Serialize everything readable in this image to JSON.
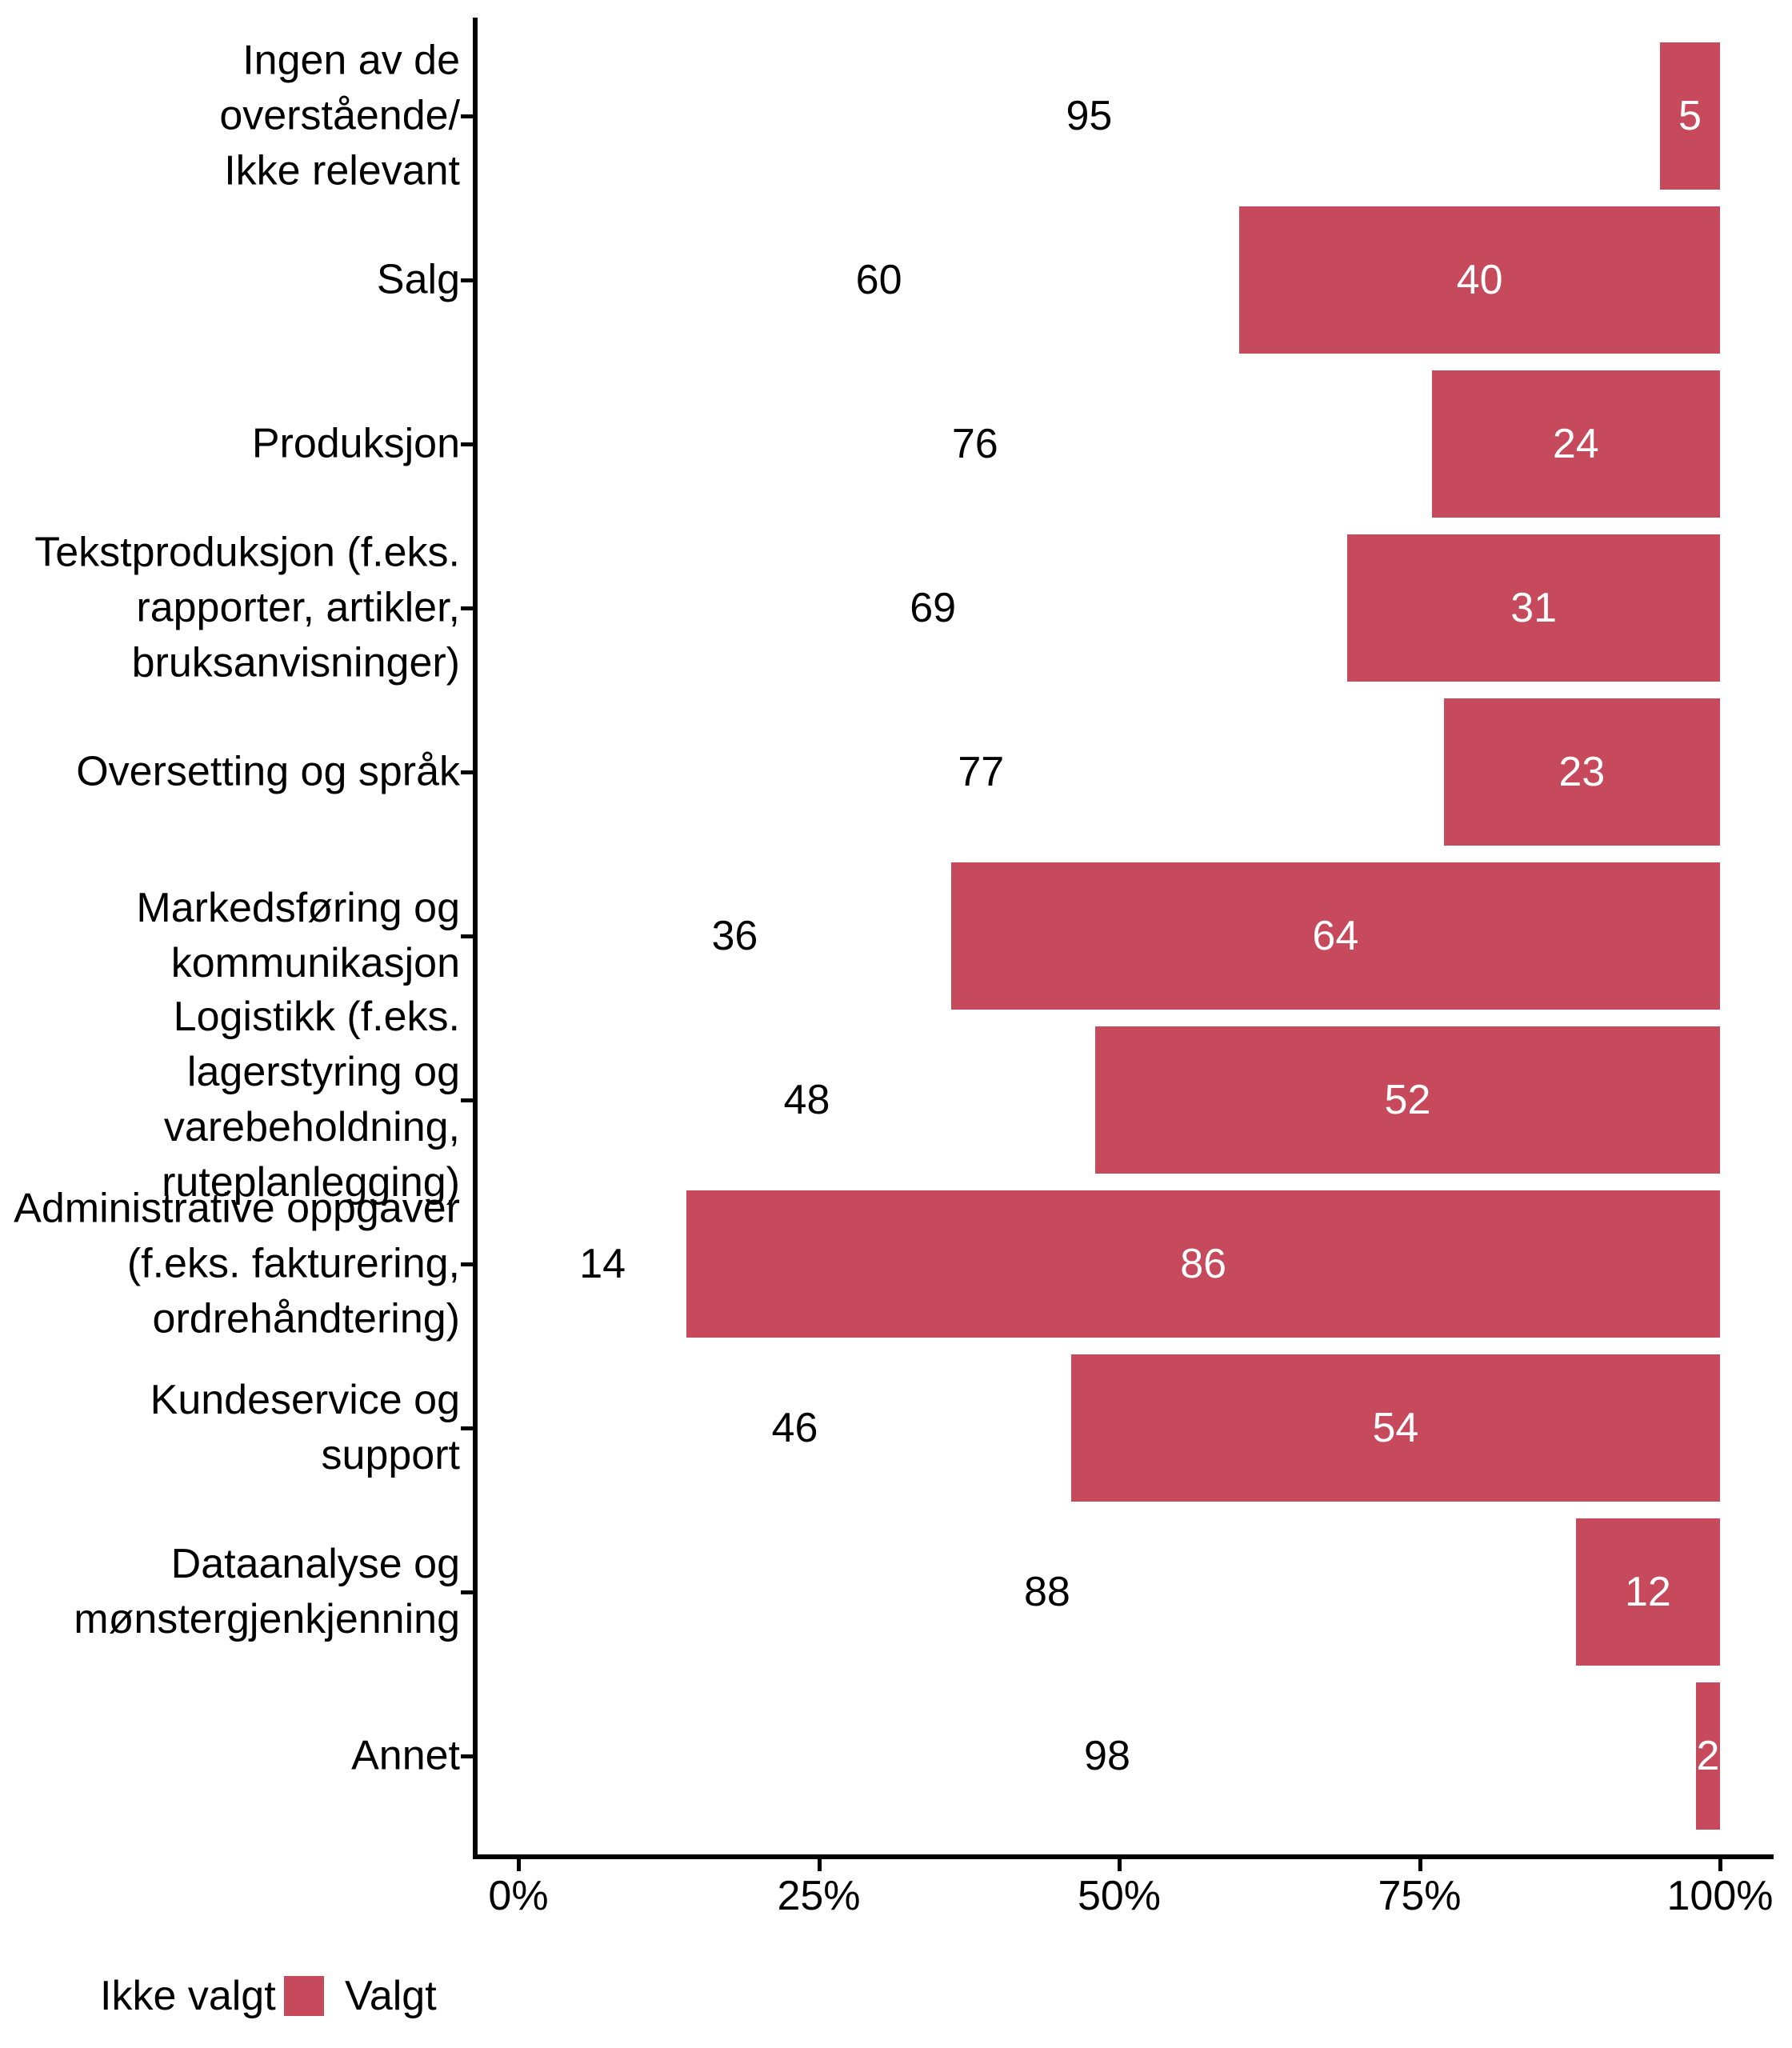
{
  "chart_data": {
    "type": "bar",
    "orientation": "horizontal",
    "stacked": true,
    "unit": "percent",
    "title": "",
    "xlabel": "",
    "ylabel": "",
    "x_axis": {
      "min": 0,
      "max": 100,
      "ticks": [
        "0%",
        "25%",
        "50%",
        "75%",
        "100%"
      ],
      "grid": false
    },
    "legend": {
      "position": "bottom-left",
      "items": [
        {
          "label": "Ikke valgt",
          "color": "#FFFFFF"
        },
        {
          "label": "Valgt",
          "color": "#C64A5C"
        }
      ]
    },
    "series": [
      {
        "name": "Ikke valgt",
        "color": "#FFFFFF",
        "values": [
          95,
          60,
          76,
          69,
          77,
          36,
          48,
          14,
          46,
          88,
          98
        ]
      },
      {
        "name": "Valgt",
        "color": "#C64A5C",
        "values": [
          5,
          40,
          24,
          31,
          23,
          64,
          52,
          86,
          54,
          12,
          2
        ]
      }
    ],
    "categories": [
      "Ingen av de overstående/ Ikke relevant",
      "Salg",
      "Produksjon",
      "Tekstproduksjon (f.eks. rapporter, artikler, bruksanvisninger)",
      "Oversetting og språk",
      "Markedsføring og kommunikasjon",
      "Logistikk (f.eks. lagerstyring og varebeholdning, ruteplanlegging)",
      "Administrative oppgaver (f.eks. fakturering, ordrehåndtering)",
      "Kundeservice og support",
      "Dataanalyse og mønstergjenkjenning",
      "Annet"
    ],
    "rows": [
      {
        "label": "Ingen av de overstående/\nIkke relevant",
        "ikke_valgt": 95,
        "valgt": 5
      },
      {
        "label": "Salg",
        "ikke_valgt": 60,
        "valgt": 40
      },
      {
        "label": "Produksjon",
        "ikke_valgt": 76,
        "valgt": 24
      },
      {
        "label": "Tekstproduksjon (f.eks.\nrapporter, artikler,\nbruksanvisninger)",
        "ikke_valgt": 69,
        "valgt": 31
      },
      {
        "label": "Oversetting og språk",
        "ikke_valgt": 77,
        "valgt": 23
      },
      {
        "label": "Markedsføring og\nkommunikasjon",
        "ikke_valgt": 36,
        "valgt": 64
      },
      {
        "label": "Logistikk (f.eks.\nlagerstyring og\nvarebeholdning,\nruteplanlegging)",
        "ikke_valgt": 48,
        "valgt": 52
      },
      {
        "label": "Administrative oppgaver\n(f.eks. fakturering,\nordrehåndtering)",
        "ikke_valgt": 14,
        "valgt": 86
      },
      {
        "label": "Kundeservice og support",
        "ikke_valgt": 46,
        "valgt": 54
      },
      {
        "label": "Dataanalyse og\nmønstergjenkjenning",
        "ikke_valgt": 88,
        "valgt": 12
      },
      {
        "label": "Annet",
        "ikke_valgt": 98,
        "valgt": 2
      }
    ]
  },
  "colors": {
    "bar_fill": "#C64A5C",
    "axis": "#000000",
    "text": "#000000",
    "background": "#FFFFFF",
    "bar_label_on_fill": "#FFFFFF"
  }
}
